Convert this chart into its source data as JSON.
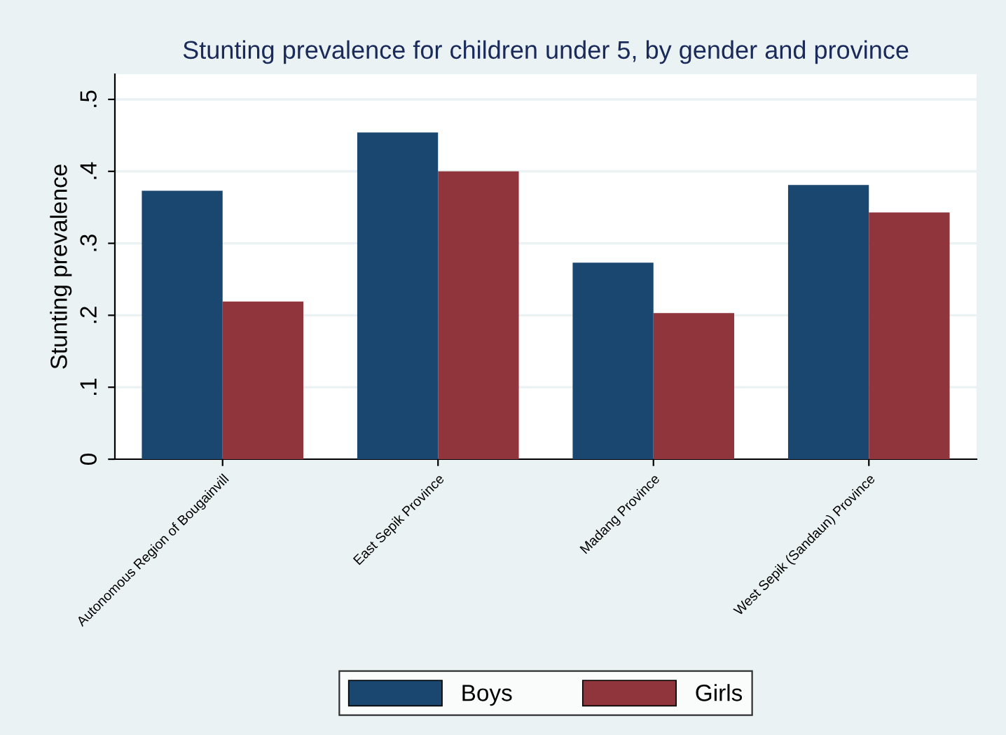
{
  "chart_data": {
    "type": "bar",
    "title": "Stunting prevalence for children under 5, by gender and province",
    "ylabel": "Stunting prevalence",
    "categories": [
      "Autonomous Region of Bougainvill",
      "East Sepik Province",
      "Madang Province",
      "West Sepik (Sandaun) Province"
    ],
    "series": [
      {
        "name": "Boys",
        "color": "#1a476f",
        "values": [
          0.373,
          0.454,
          0.273,
          0.381
        ]
      },
      {
        "name": "Girls",
        "color": "#90353b",
        "values": [
          0.219,
          0.4,
          0.203,
          0.343
        ]
      }
    ],
    "ylim": [
      0,
      0.535
    ],
    "yticks": [
      {
        "value": 0,
        "label": "0"
      },
      {
        "value": 0.1,
        "label": ".1"
      },
      {
        "value": 0.2,
        "label": ".2"
      },
      {
        "value": 0.3,
        "label": ".3"
      },
      {
        "value": 0.4,
        "label": ".4"
      },
      {
        "value": 0.5,
        "label": ".5"
      }
    ],
    "grid": "y",
    "legend": "bottom"
  }
}
